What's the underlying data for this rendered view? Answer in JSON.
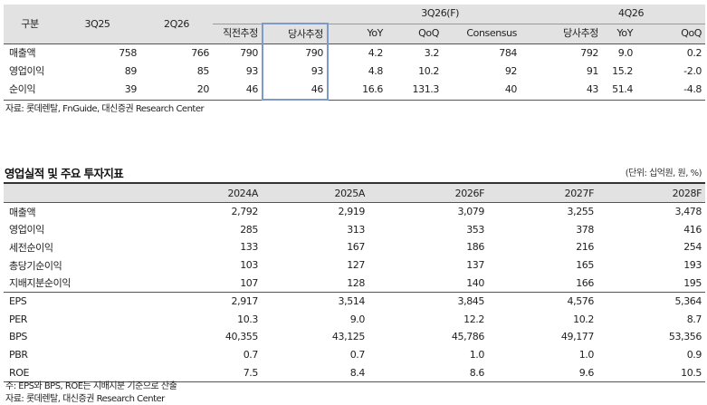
{
  "quarter_table": {
    "row_header_label": "구분",
    "col_3q25": "3Q25",
    "col_2q26": "2Q26",
    "group_3q26": "3Q26(F)",
    "group_4q26": "4Q26",
    "sub_3q26": [
      "직전추정",
      "당사추정",
      "YoY",
      "QoQ",
      "Consensus"
    ],
    "sub_4q26": [
      "당사추정",
      "YoY",
      "QoQ"
    ],
    "rows": [
      {
        "label": "매출액",
        "c": [
          "758",
          "766",
          "790",
          "790",
          "4.2",
          "3.2",
          "784",
          "792",
          "9.0",
          "0.2"
        ]
      },
      {
        "label": "영업이익",
        "c": [
          "89",
          "85",
          "93",
          "93",
          "4.8",
          "10.2",
          "92",
          "91",
          "15.2",
          "-2.0"
        ]
      },
      {
        "label": "순이익",
        "c": [
          "39",
          "20",
          "46",
          "46",
          "16.6",
          "131.3",
          "40",
          "43",
          "51.4",
          "-4.8"
        ]
      }
    ],
    "source": "자료: 롯데렌탈, FnGuide, 대신증권 Research Center"
  },
  "annual_table": {
    "title": "영업실적 및 주요 투자지표",
    "unit": "(단위: 십억원, 원, %)",
    "years": [
      "2024A",
      "2025A",
      "2026F",
      "2027F",
      "2028F"
    ],
    "rows": [
      {
        "label": "매출액",
        "v": [
          "2,792",
          "2,919",
          "3,079",
          "3,255",
          "3,478"
        ]
      },
      {
        "label": "영업이익",
        "v": [
          "285",
          "313",
          "353",
          "378",
          "416"
        ]
      },
      {
        "label": "세전순이익",
        "v": [
          "133",
          "167",
          "186",
          "216",
          "254"
        ]
      },
      {
        "label": "총당기순이익",
        "v": [
          "103",
          "127",
          "137",
          "165",
          "193"
        ]
      },
      {
        "label": "지배지분순이익",
        "v": [
          "107",
          "128",
          "140",
          "166",
          "195"
        ]
      },
      {
        "label": "EPS",
        "v": [
          "2,917",
          "3,514",
          "3,845",
          "4,576",
          "5,364"
        ]
      },
      {
        "label": "PER",
        "v": [
          "10.3",
          "9.0",
          "12.2",
          "10.2",
          "8.7"
        ]
      },
      {
        "label": "BPS",
        "v": [
          "40,355",
          "43,125",
          "45,786",
          "49,177",
          "53,356"
        ]
      },
      {
        "label": "PBR",
        "v": [
          "0.7",
          "0.7",
          "1.0",
          "1.0",
          "0.9"
        ]
      },
      {
        "label": "ROE",
        "v": [
          "7.5",
          "8.4",
          "8.6",
          "9.6",
          "10.5"
        ]
      }
    ],
    "note": "주: EPS와 BPS, ROE는 지배지분 기준으로 산출",
    "source": "자료: 롯데렌탈, 대신증권 Research Center"
  }
}
